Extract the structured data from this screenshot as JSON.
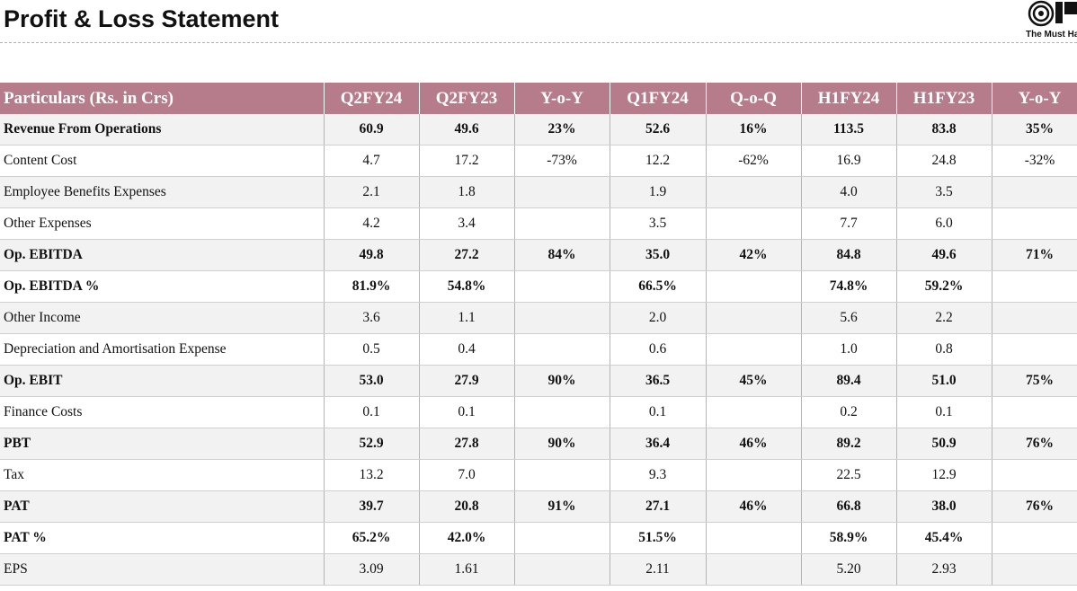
{
  "header": {
    "title": "Profit & Loss Statement",
    "logo_text": "The Must Ha"
  },
  "table": {
    "columns": [
      "Particulars (Rs. in Crs)",
      "Q2FY24",
      "Q2FY23",
      "Y-o-Y",
      "Q1FY24",
      "Q-o-Q",
      "H1FY24",
      "H1FY23",
      "Y-o-Y"
    ],
    "rows": [
      {
        "bold": true,
        "cells": [
          "Revenue From Operations",
          "60.9",
          "49.6",
          "23%",
          "52.6",
          "16%",
          "113.5",
          "83.8",
          "35%"
        ]
      },
      {
        "bold": false,
        "cells": [
          "Content Cost",
          "4.7",
          "17.2",
          "-73%",
          "12.2",
          "-62%",
          "16.9",
          "24.8",
          "-32%"
        ]
      },
      {
        "bold": false,
        "cells": [
          "Employee Benefits Expenses",
          "2.1",
          "1.8",
          null,
          "1.9",
          null,
          "4.0",
          "3.5",
          null
        ]
      },
      {
        "bold": false,
        "cells": [
          "Other Expenses",
          "4.2",
          "3.4",
          null,
          "3.5",
          null,
          "7.7",
          "6.0",
          null
        ]
      },
      {
        "bold": true,
        "cells": [
          "Op. EBITDA",
          "49.8",
          "27.2",
          "84%",
          "35.0",
          "42%",
          "84.8",
          "49.6",
          "71%"
        ]
      },
      {
        "bold": true,
        "cells": [
          "Op. EBITDA %",
          "81.9%",
          "54.8%",
          null,
          "66.5%",
          null,
          "74.8%",
          "59.2%",
          null
        ]
      },
      {
        "bold": false,
        "cells": [
          "Other Income",
          "3.6",
          "1.1",
          null,
          "2.0",
          null,
          "5.6",
          "2.2",
          null
        ]
      },
      {
        "bold": false,
        "cells": [
          "Depreciation and Amortisation Expense",
          "0.5",
          "0.4",
          null,
          "0.6",
          null,
          "1.0",
          "0.8",
          null
        ]
      },
      {
        "bold": true,
        "cells": [
          "Op. EBIT",
          "53.0",
          "27.9",
          "90%",
          "36.5",
          "45%",
          "89.4",
          "51.0",
          "75%"
        ]
      },
      {
        "bold": false,
        "cells": [
          "Finance Costs",
          "0.1",
          "0.1",
          null,
          "0.1",
          null,
          "0.2",
          "0.1",
          null
        ]
      },
      {
        "bold": true,
        "cells": [
          "PBT",
          "52.9",
          "27.8",
          "90%",
          "36.4",
          "46%",
          "89.2",
          "50.9",
          "76%"
        ]
      },
      {
        "bold": false,
        "cells": [
          "Tax",
          "13.2",
          "7.0",
          null,
          "9.3",
          null,
          "22.5",
          "12.9",
          null
        ]
      },
      {
        "bold": true,
        "cells": [
          "PAT",
          "39.7",
          "20.8",
          "91%",
          "27.1",
          "46%",
          "66.8",
          "38.0",
          "76%"
        ]
      },
      {
        "bold": true,
        "cells": [
          "PAT %",
          "65.2%",
          "42.0%",
          null,
          "51.5%",
          null,
          "58.9%",
          "45.4%",
          null
        ]
      },
      {
        "bold": false,
        "cells": [
          "EPS",
          "3.09",
          "1.61",
          null,
          "2.11",
          null,
          "5.20",
          "2.93",
          null
        ]
      }
    ]
  }
}
